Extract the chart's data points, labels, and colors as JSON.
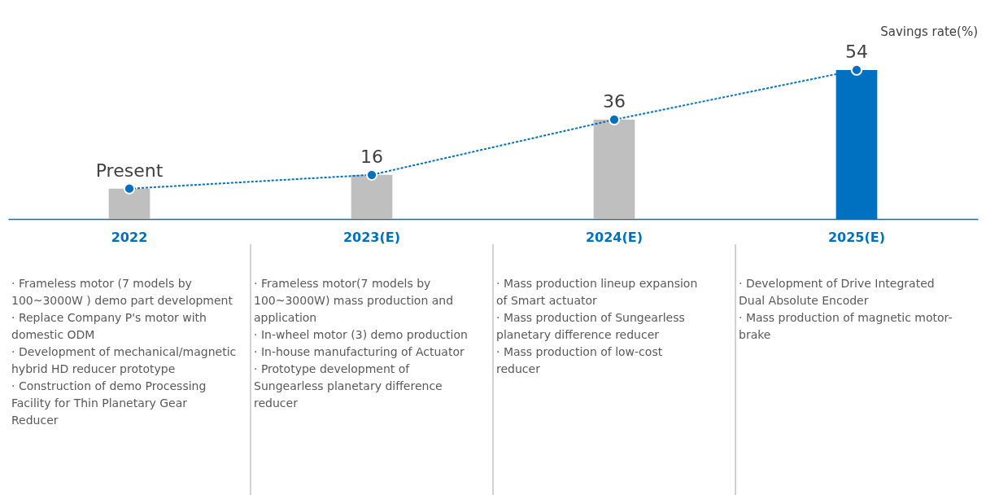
{
  "chart_data": {
    "type": "bar",
    "ylabel": "Savings rate(%)",
    "categories": [
      "2022",
      "2023(E)",
      "2024(E)",
      "2025(E)"
    ],
    "series": [
      {
        "colors": [
          "#bfbfbf",
          "#bfbfbf",
          "#bfbfbf",
          "#0070c0"
        ],
        "values": [
          11,
          16,
          36,
          54
        ],
        "value_labels": [
          "Present",
          "16",
          "36",
          "54"
        ]
      },
      {
        "type": "line",
        "color": "#0070c0",
        "values": [
          11,
          16,
          36,
          54
        ],
        "marker": "circle",
        "line_style": "dashed"
      }
    ],
    "annotations": [
      "· Frameless motor (7 models by 100~3000W ) demo part development\n· Replace Company P's motor with domestic ODM\n· Development of mechanical/magnetic hybrid HD reducer prototype\n· Construction of demo Processing Facility for Thin Planetary Gear Reducer",
      "· Frameless motor(7 models by 100~3000W) mass production and application\n· In-wheel motor (3) demo production\n· In-house manufacturing of Actuator\n· Prototype development of Sungearless planetary difference reducer",
      "· Mass production lineup expansion of Smart actuator\n· Mass production of Sungearless planetary difference reducer\n· Mass production of low-cost reducer",
      "· Development of Drive Integrated Dual Absolute Encoder\n· Mass production of magnetic motor-brake"
    ]
  }
}
